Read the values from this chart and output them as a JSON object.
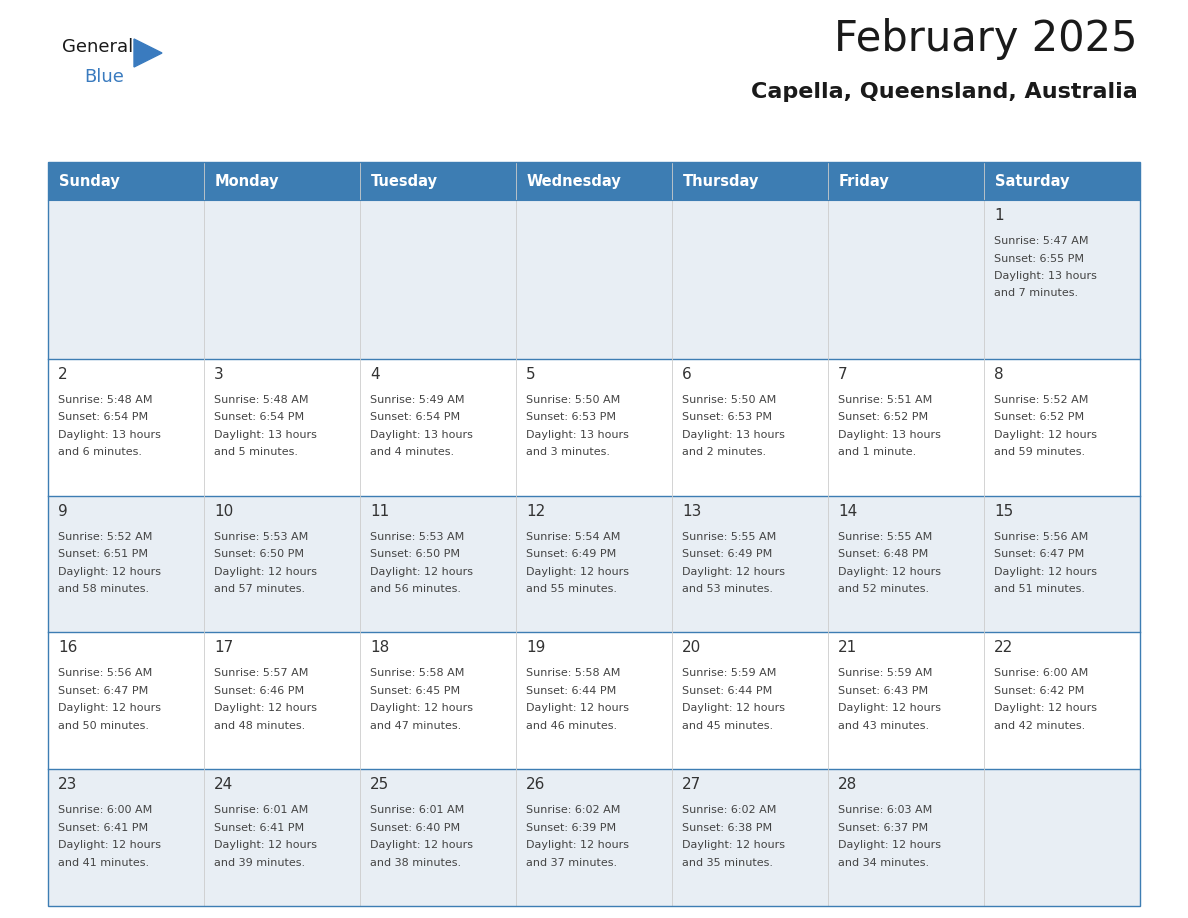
{
  "title": "February 2025",
  "subtitle": "Capella, Queensland, Australia",
  "days_of_week": [
    "Sunday",
    "Monday",
    "Tuesday",
    "Wednesday",
    "Thursday",
    "Friday",
    "Saturday"
  ],
  "header_bg": "#3d7db3",
  "header_text": "#ffffff",
  "row_bg_grey": "#e8eef4",
  "row_bg_white": "#ffffff",
  "cell_border_color": "#3d7db3",
  "cell_divider_color": "#cccccc",
  "day_number_color": "#333333",
  "day_info_color": "#444444",
  "title_color": "#1a1a1a",
  "subtitle_color": "#1a1a1a",
  "logo_general_color": "#1a1a1a",
  "logo_blue_color": "#3a7bbf",
  "logo_triangle_color": "#3a7bbf",
  "calendar_data": [
    [
      null,
      null,
      null,
      null,
      null,
      null,
      {
        "day": 1,
        "sunrise": "5:47 AM",
        "sunset": "6:55 PM",
        "daylight": "13 hours and 7 minutes."
      }
    ],
    [
      {
        "day": 2,
        "sunrise": "5:48 AM",
        "sunset": "6:54 PM",
        "daylight": "13 hours and 6 minutes."
      },
      {
        "day": 3,
        "sunrise": "5:48 AM",
        "sunset": "6:54 PM",
        "daylight": "13 hours and 5 minutes."
      },
      {
        "day": 4,
        "sunrise": "5:49 AM",
        "sunset": "6:54 PM",
        "daylight": "13 hours and 4 minutes."
      },
      {
        "day": 5,
        "sunrise": "5:50 AM",
        "sunset": "6:53 PM",
        "daylight": "13 hours and 3 minutes."
      },
      {
        "day": 6,
        "sunrise": "5:50 AM",
        "sunset": "6:53 PM",
        "daylight": "13 hours and 2 minutes."
      },
      {
        "day": 7,
        "sunrise": "5:51 AM",
        "sunset": "6:52 PM",
        "daylight": "13 hours and 1 minute."
      },
      {
        "day": 8,
        "sunrise": "5:52 AM",
        "sunset": "6:52 PM",
        "daylight": "12 hours and 59 minutes."
      }
    ],
    [
      {
        "day": 9,
        "sunrise": "5:52 AM",
        "sunset": "6:51 PM",
        "daylight": "12 hours and 58 minutes."
      },
      {
        "day": 10,
        "sunrise": "5:53 AM",
        "sunset": "6:50 PM",
        "daylight": "12 hours and 57 minutes."
      },
      {
        "day": 11,
        "sunrise": "5:53 AM",
        "sunset": "6:50 PM",
        "daylight": "12 hours and 56 minutes."
      },
      {
        "day": 12,
        "sunrise": "5:54 AM",
        "sunset": "6:49 PM",
        "daylight": "12 hours and 55 minutes."
      },
      {
        "day": 13,
        "sunrise": "5:55 AM",
        "sunset": "6:49 PM",
        "daylight": "12 hours and 53 minutes."
      },
      {
        "day": 14,
        "sunrise": "5:55 AM",
        "sunset": "6:48 PM",
        "daylight": "12 hours and 52 minutes."
      },
      {
        "day": 15,
        "sunrise": "5:56 AM",
        "sunset": "6:47 PM",
        "daylight": "12 hours and 51 minutes."
      }
    ],
    [
      {
        "day": 16,
        "sunrise": "5:56 AM",
        "sunset": "6:47 PM",
        "daylight": "12 hours and 50 minutes."
      },
      {
        "day": 17,
        "sunrise": "5:57 AM",
        "sunset": "6:46 PM",
        "daylight": "12 hours and 48 minutes."
      },
      {
        "day": 18,
        "sunrise": "5:58 AM",
        "sunset": "6:45 PM",
        "daylight": "12 hours and 47 minutes."
      },
      {
        "day": 19,
        "sunrise": "5:58 AM",
        "sunset": "6:44 PM",
        "daylight": "12 hours and 46 minutes."
      },
      {
        "day": 20,
        "sunrise": "5:59 AM",
        "sunset": "6:44 PM",
        "daylight": "12 hours and 45 minutes."
      },
      {
        "day": 21,
        "sunrise": "5:59 AM",
        "sunset": "6:43 PM",
        "daylight": "12 hours and 43 minutes."
      },
      {
        "day": 22,
        "sunrise": "6:00 AM",
        "sunset": "6:42 PM",
        "daylight": "12 hours and 42 minutes."
      }
    ],
    [
      {
        "day": 23,
        "sunrise": "6:00 AM",
        "sunset": "6:41 PM",
        "daylight": "12 hours and 41 minutes."
      },
      {
        "day": 24,
        "sunrise": "6:01 AM",
        "sunset": "6:41 PM",
        "daylight": "12 hours and 39 minutes."
      },
      {
        "day": 25,
        "sunrise": "6:01 AM",
        "sunset": "6:40 PM",
        "daylight": "12 hours and 38 minutes."
      },
      {
        "day": 26,
        "sunrise": "6:02 AM",
        "sunset": "6:39 PM",
        "daylight": "12 hours and 37 minutes."
      },
      {
        "day": 27,
        "sunrise": "6:02 AM",
        "sunset": "6:38 PM",
        "daylight": "12 hours and 35 minutes."
      },
      {
        "day": 28,
        "sunrise": "6:03 AM",
        "sunset": "6:37 PM",
        "daylight": "12 hours and 34 minutes."
      },
      null
    ]
  ]
}
